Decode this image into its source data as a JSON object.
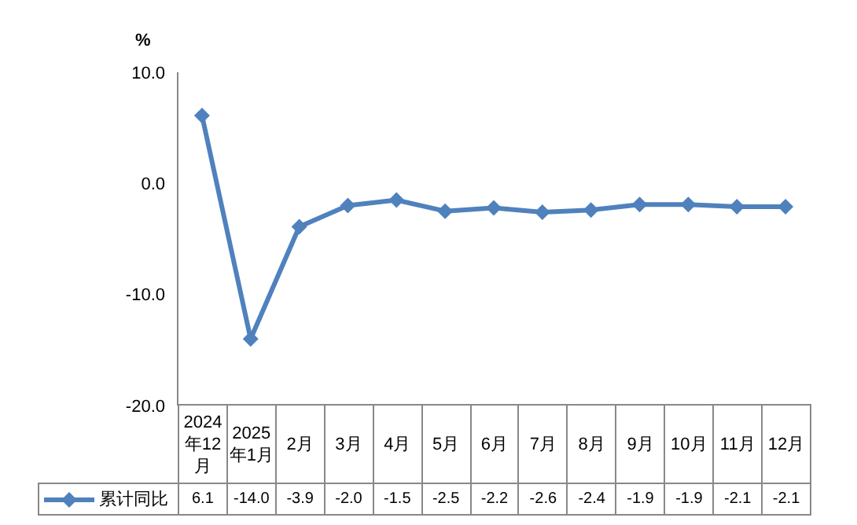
{
  "chart_data": {
    "type": "line",
    "ylabel": "%",
    "categories": [
      "2024年12月",
      "2025年1月",
      "2月",
      "3月",
      "4月",
      "5月",
      "6月",
      "7月",
      "8月",
      "9月",
      "10月",
      "11月",
      "12月"
    ],
    "series": [
      {
        "name": "累计同比",
        "color": "#4f81bd",
        "values": [
          6.1,
          -14.0,
          -3.9,
          -2.0,
          -1.5,
          -2.5,
          -2.2,
          -2.6,
          -2.4,
          -1.9,
          -1.9,
          -2.1,
          -2.1
        ],
        "value_labels": [
          "6.1",
          "-14.0",
          "-3.9",
          "-2.0",
          "-1.5",
          "-2.5",
          "-2.2",
          "-2.6",
          "-2.4",
          "-1.9",
          "-1.9",
          "-2.1",
          "-2.1"
        ]
      }
    ],
    "ylim": [
      -20,
      10
    ],
    "yticks": [
      {
        "value": -20,
        "label": "-20.0"
      },
      {
        "value": -10,
        "label": "-10.0"
      },
      {
        "value": 0,
        "label": "0.0"
      },
      {
        "value": 10,
        "label": "10.0"
      }
    ],
    "grid": false,
    "legend": "bottom",
    "marker": "diamond",
    "line_style": "solid"
  }
}
